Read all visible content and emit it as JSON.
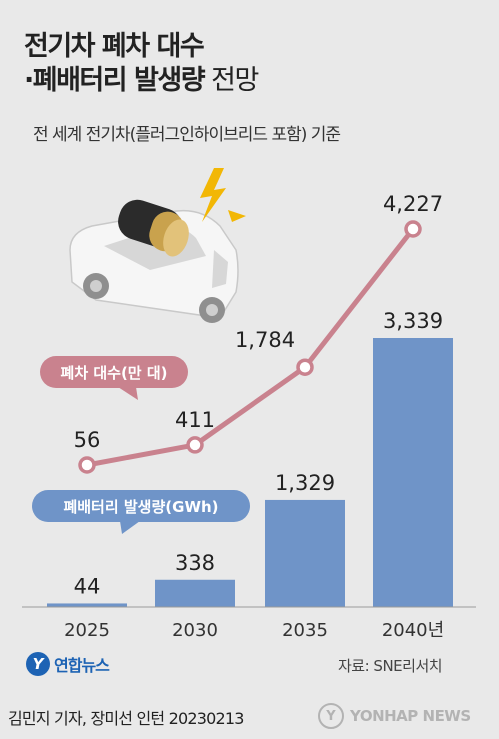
{
  "title": {
    "line1": "전기차 폐차 대수",
    "line2_bold": "·폐배터리 발생량",
    "line2_suffix": " 전망"
  },
  "subtitle": "전 세계 전기차(플러그인하이브리드 포함) 기준",
  "chart_data": {
    "type": "bar",
    "categories": [
      "2025",
      "2030",
      "2035",
      "2040년"
    ],
    "series": [
      {
        "name": "폐배터리 발생량(GWh)",
        "type": "bar",
        "values": [
          44,
          338,
          1329,
          3339
        ],
        "labels": [
          "44",
          "338",
          "1,329",
          "3,339"
        ],
        "color": "#6f94c8"
      },
      {
        "name": "폐차 대수(만 대)",
        "type": "line",
        "values": [
          56,
          411,
          1784,
          4227
        ],
        "labels": [
          "56",
          "411",
          "1,784",
          "4,227"
        ],
        "color": "#c9828e"
      }
    ],
    "legend": "in-chart callouts",
    "grid": false
  },
  "source": "자료: SNE리서치",
  "logo_text": "연합뉴스",
  "credit": "김민지 기자, 장미선 인턴  20230213",
  "watermark": "YONHAP NEWS",
  "colors": {
    "bar": "#6f94c8",
    "line": "#c9828e",
    "background": "#e9e9e9"
  }
}
